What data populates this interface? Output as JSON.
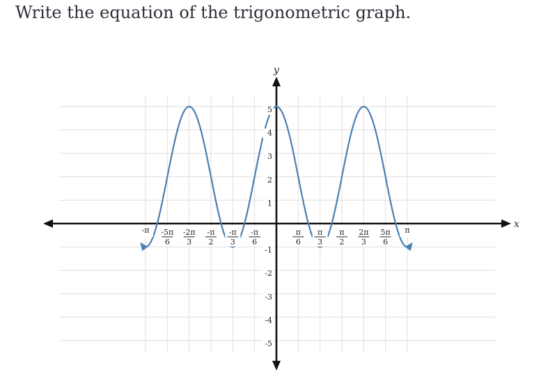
{
  "question": "Write the equation of the trigonometric graph.",
  "chart_data": {
    "type": "line",
    "xlabel": "x",
    "ylabel": "y",
    "xlim": [
      -3.35,
      3.35
    ],
    "ylim": [
      -5.9,
      6.0
    ],
    "x_ticks": [
      {
        "value": -3.14159,
        "num": "-π",
        "den": ""
      },
      {
        "value": -2.61799,
        "num": "-5π",
        "den": "6"
      },
      {
        "value": -2.0944,
        "num": "-2π",
        "den": "3"
      },
      {
        "value": -1.5708,
        "num": "-π",
        "den": "2"
      },
      {
        "value": -1.0472,
        "num": "-π",
        "den": "3"
      },
      {
        "value": -0.5236,
        "num": "-π",
        "den": "6"
      },
      {
        "value": 0.5236,
        "num": "π",
        "den": "6"
      },
      {
        "value": 1.0472,
        "num": "π",
        "den": "3"
      },
      {
        "value": 1.5708,
        "num": "π",
        "den": "2"
      },
      {
        "value": 2.0944,
        "num": "2π",
        "den": "3"
      },
      {
        "value": 2.61799,
        "num": "5π",
        "den": "6"
      },
      {
        "value": 3.14159,
        "num": "π",
        "den": ""
      }
    ],
    "y_ticks": [
      {
        "value": 5,
        "label": "5"
      },
      {
        "value": 4,
        "label": "4"
      },
      {
        "value": 3,
        "label": "3"
      },
      {
        "value": 2,
        "label": "2"
      },
      {
        "value": 1,
        "label": "1"
      },
      {
        "value": -1,
        "label": "-1"
      },
      {
        "value": -2,
        "label": "-2"
      },
      {
        "value": -3,
        "label": "-3"
      },
      {
        "value": -4,
        "label": "-4"
      },
      {
        "value": -5,
        "label": "-5"
      }
    ],
    "series": [
      {
        "x": [
          -3.14159,
          -2.61799,
          -2.0944,
          -1.5708,
          -1.0472,
          -0.5236,
          0,
          0.5236,
          1.0472,
          1.5708,
          2.0944,
          2.61799,
          3.14159
        ],
        "y": [
          -1,
          2,
          5,
          2,
          -1,
          2,
          5,
          2,
          -1,
          2,
          5,
          2,
          -1
        ],
        "color": "#4a7fb1"
      }
    ],
    "grid": true
  }
}
